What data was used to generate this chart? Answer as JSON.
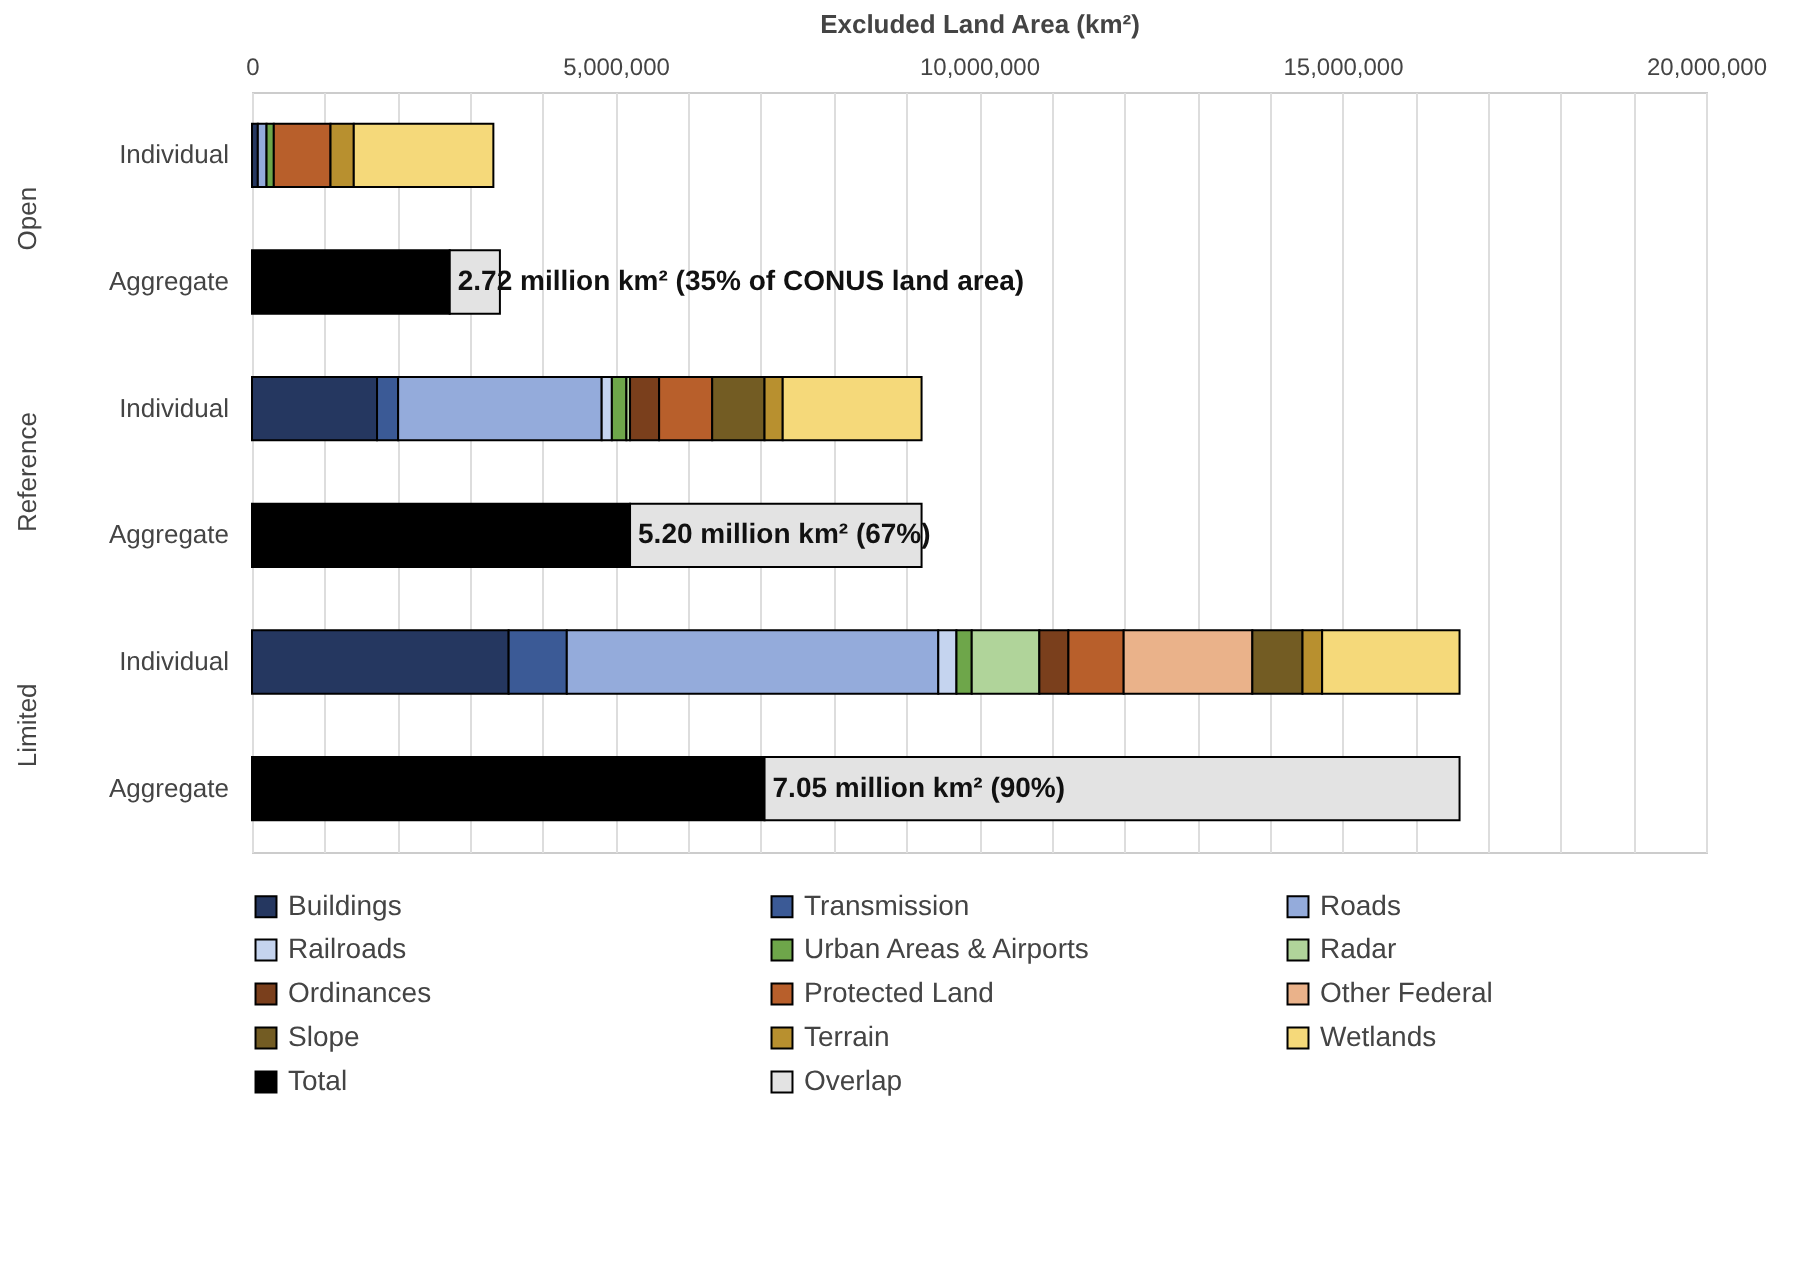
{
  "chart_data": {
    "type": "bar",
    "orientation": "horizontal",
    "stacked": true,
    "xlabel": "Excluded Land Area (km²)",
    "categories": [
      "Individual",
      "Aggregate",
      "Individual",
      "Aggregate",
      "Individual",
      "Aggregate"
    ],
    "annotations": [
      "Open",
      "Reference",
      "Limited"
    ],
    "xlim": [
      0,
      20000000
    ],
    "xticks": [
      0,
      {
        "value": 1000000,
        "label": null
      },
      {
        "value": 2000000,
        "label": null
      },
      {
        "value": 3000000,
        "label": null
      },
      {
        "value": 4000000,
        "label": null
      },
      {
        "value": 5000000,
        "label": "5,000,000"
      },
      {
        "value": 6000000,
        "label": null
      },
      {
        "value": 7000000,
        "label": null
      },
      {
        "value": 8000000,
        "label": null
      },
      {
        "value": 9000000,
        "label": null
      },
      {
        "value": 10000000,
        "label": "10,000,000"
      },
      {
        "value": 11000000,
        "label": null
      },
      {
        "value": 12000000,
        "label": null
      },
      {
        "value": 13000000,
        "label": null
      },
      {
        "value": 14000000,
        "label": null
      },
      {
        "value": 15000000,
        "label": "15,000,000"
      },
      {
        "value": 16000000,
        "label": null
      },
      {
        "value": 17000000,
        "label": null
      },
      {
        "value": 18000000,
        "label": null
      },
      {
        "value": 19000000,
        "label": null
      },
      {
        "value": 20000000,
        "label": "20,000,000"
      }
    ],
    "grid": "x",
    "legend": "bottom",
    "series": [
      {
        "name": "Buildings",
        "color": "#253760",
        "values": [
          80000,
          null,
          1720000,
          null,
          3530000,
          null
        ]
      },
      {
        "name": "Transmission",
        "color": "#3b5a96",
        "values": [
          null,
          null,
          290000,
          null,
          800000,
          null
        ]
      },
      {
        "name": "Roads",
        "color": "#94abdb",
        "values": [
          120000,
          null,
          2800000,
          null,
          5110000,
          null
        ]
      },
      {
        "name": "Railroads",
        "color": "#c5d4ef",
        "values": [
          null,
          null,
          140000,
          null,
          250000,
          null
        ]
      },
      {
        "name": "Urban Areas & Airports",
        "color": "#6ea64a",
        "values": [
          100000,
          null,
          200000,
          null,
          210000,
          null
        ]
      },
      {
        "name": "Radar",
        "color": "#b0d49a",
        "values": [
          null,
          null,
          50000,
          null,
          930000,
          null
        ]
      },
      {
        "name": "Ordinances",
        "color": "#7a3f1c",
        "values": [
          null,
          null,
          400000,
          null,
          400000,
          null
        ]
      },
      {
        "name": "Protected Land",
        "color": "#b85f2b",
        "values": [
          780000,
          null,
          730000,
          null,
          760000,
          null
        ]
      },
      {
        "name": "Other Federal",
        "color": "#eab28a",
        "values": [
          null,
          null,
          null,
          null,
          1770000,
          null
        ]
      },
      {
        "name": "Slope",
        "color": "#735c23",
        "values": [
          null,
          null,
          720000,
          null,
          690000,
          null
        ]
      },
      {
        "name": "Terrain",
        "color": "#b8902f",
        "values": [
          320000,
          null,
          250000,
          null,
          270000,
          null
        ]
      },
      {
        "name": "Wetlands",
        "color": "#f5d97a",
        "values": [
          1920000,
          null,
          1910000,
          null,
          1890000,
          null
        ]
      },
      {
        "name": "Total",
        "color": "#000000",
        "values": [
          null,
          2720000,
          null,
          5200000,
          null,
          7050000
        ],
        "value_labels": [
          null,
          "2.72 million km² (35% of CONUS land area)",
          null,
          "5.20 million km² (67%)",
          null,
          "7.05 million km² (90%)"
        ]
      },
      {
        "name": "Overlap",
        "color": "#e3e3e3",
        "values": [
          null,
          690000,
          null,
          4010000,
          null,
          9560000
        ]
      }
    ]
  }
}
